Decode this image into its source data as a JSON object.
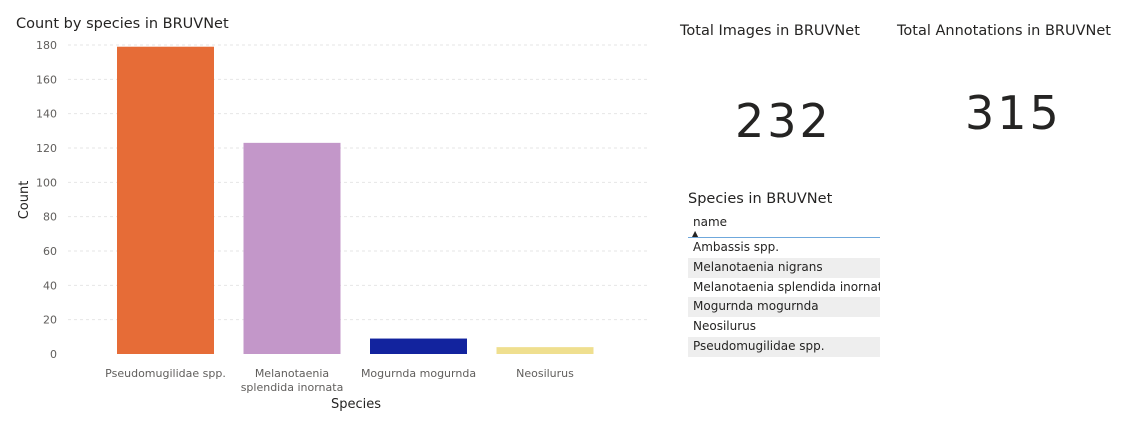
{
  "chart_data": {
    "type": "bar",
    "title": "Count by species in BRUVNet",
    "xlabel": "Species",
    "ylabel": "Count",
    "ylim": [
      0,
      180
    ],
    "yticks": [
      0,
      20,
      40,
      60,
      80,
      100,
      120,
      140,
      160,
      180
    ],
    "categories": [
      [
        "Pseudomugilidae spp."
      ],
      [
        "Melanotaenia",
        "splendida inornata"
      ],
      [
        "Mogurnda mogurnda"
      ],
      [
        "Neosilurus"
      ]
    ],
    "values": [
      179,
      123,
      9,
      4
    ],
    "colors": [
      "#e66c37",
      "#c397c9",
      "#12239e",
      "#efdf8f"
    ],
    "grid": true,
    "legend": "none"
  },
  "cards": {
    "images": {
      "title": "Total Images in BRUVNet",
      "value": "232"
    },
    "annotations": {
      "title": "Total Annotations in BRUVNet",
      "value": "315"
    }
  },
  "species_table": {
    "title": "Species in BRUVNet",
    "column": "name",
    "rows": [
      "Ambassis spp.",
      "Melanotaenia nigrans",
      "Melanotaenia splendida inornata",
      "Mogurnda mogurnda",
      "Neosilurus",
      "Pseudomugilidae spp."
    ]
  }
}
